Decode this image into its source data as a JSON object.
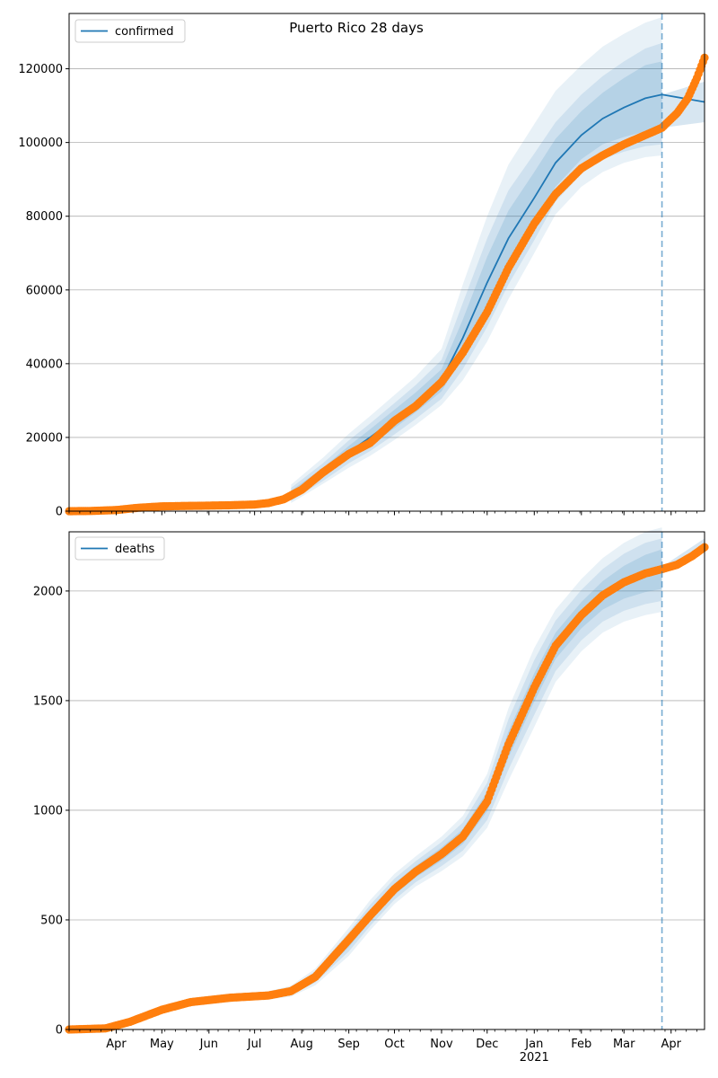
{
  "figure": {
    "title": "Puerto Rico 28 days"
  },
  "colors": {
    "model": "#1f77b4",
    "observed": "#ff7f0e",
    "band": "#1f77b4",
    "grid": "#b0b0b0",
    "vline": "#1f77b4"
  },
  "x_axis": {
    "start": "2020-03-01",
    "end": "2021-04-23",
    "month_labels": [
      "Apr",
      "May",
      "Jun",
      "Jul",
      "Aug",
      "Sep",
      "Oct",
      "Nov",
      "Dec",
      "Jan",
      "Feb",
      "Mar",
      "Apr"
    ],
    "month_dates": [
      "2020-04-01",
      "2020-05-01",
      "2020-06-01",
      "2020-07-01",
      "2020-08-01",
      "2020-09-01",
      "2020-10-01",
      "2020-11-01",
      "2020-12-01",
      "2021-01-01",
      "2021-02-01",
      "2021-03-01",
      "2021-04-01"
    ],
    "year_label": "2021",
    "forecast_start": "2021-03-26"
  },
  "chart_data": [
    {
      "type": "line",
      "legend": "confirmed",
      "legend_position": "top-left",
      "grid": "y",
      "ylim": [
        0,
        135000
      ],
      "yticks": [
        0,
        20000,
        40000,
        60000,
        80000,
        100000,
        120000
      ],
      "ytick_labels": [
        "0",
        "20000",
        "40000",
        "60000",
        "80000",
        "100000",
        "120000"
      ],
      "model": {
        "dates": [
          "2020-07-25",
          "2020-08-15",
          "2020-09-01",
          "2020-09-15",
          "2020-10-01",
          "2020-10-15",
          "2020-11-01",
          "2020-11-15",
          "2020-12-01",
          "2020-12-15",
          "2021-01-01",
          "2021-01-15",
          "2021-02-01",
          "2021-02-15",
          "2021-03-01",
          "2021-03-15",
          "2021-03-26",
          "2021-04-23"
        ],
        "values": [
          4500,
          10500,
          16000,
          20000,
          25000,
          29500,
          35500,
          47000,
          62000,
          74000,
          85000,
          94500,
          102000,
          106500,
          109500,
          112000,
          113000,
          111000
        ]
      },
      "band_inner": {
        "lower": [
          3500,
          9200,
          14300,
          17800,
          22500,
          26800,
          32500,
          42000,
          55000,
          66500,
          78000,
          88000,
          95500,
          99500,
          101500,
          103000,
          104000
        ],
        "upper": [
          5500,
          11800,
          17700,
          22200,
          27500,
          32200,
          38500,
          52000,
          69000,
          81500,
          92000,
          101000,
          108500,
          113500,
          117500,
          121000,
          122000
        ]
      },
      "band_middle": {
        "lower": [
          2800,
          8200,
          13000,
          16300,
          20800,
          25000,
          30500,
          38500,
          50000,
          61500,
          73500,
          84000,
          91500,
          95500,
          97500,
          99000,
          99500
        ],
        "upper": [
          6300,
          13000,
          19200,
          23800,
          29300,
          34200,
          41000,
          56500,
          74000,
          87000,
          97000,
          105500,
          113000,
          118000,
          122000,
          125500,
          127000
        ]
      },
      "band_outer": {
        "lower": [
          2200,
          7400,
          11800,
          15000,
          19300,
          23400,
          28800,
          35500,
          46000,
          57500,
          70000,
          80500,
          88000,
          92000,
          94500,
          96000,
          96500
        ],
        "upper": [
          7200,
          14500,
          21000,
          25800,
          31500,
          36500,
          44000,
          61500,
          80000,
          94000,
          105000,
          114000,
          121000,
          126000,
          129500,
          132500,
          134000
        ]
      },
      "forecast_band": {
        "lower": [
          104000,
          105500
        ],
        "upper": [
          113000,
          116500
        ]
      },
      "observed": {
        "dates": [
          "2020-03-01",
          "2020-03-15",
          "2020-04-01",
          "2020-04-15",
          "2020-05-01",
          "2020-05-15",
          "2020-06-01",
          "2020-06-15",
          "2020-07-01",
          "2020-07-10",
          "2020-07-20",
          "2020-08-01",
          "2020-08-15",
          "2020-09-01",
          "2020-09-15",
          "2020-10-01",
          "2020-10-15",
          "2020-11-01",
          "2020-11-15",
          "2020-12-01",
          "2020-12-15",
          "2021-01-01",
          "2021-01-15",
          "2021-02-01",
          "2021-02-15",
          "2021-03-01",
          "2021-03-15",
          "2021-03-26",
          "2021-04-05",
          "2021-04-12",
          "2021-04-18",
          "2021-04-23"
        ],
        "values": [
          0,
          50,
          300,
          900,
          1300,
          1400,
          1500,
          1600,
          1800,
          2200,
          3200,
          5800,
          10500,
          15500,
          18500,
          24500,
          28500,
          35000,
          43000,
          54000,
          66000,
          78000,
          86000,
          93000,
          96500,
          99500,
          102000,
          104000,
          108000,
          112000,
          117500,
          123000
        ]
      }
    },
    {
      "type": "line",
      "legend": "deaths",
      "legend_position": "top-left",
      "grid": "y",
      "ylim": [
        0,
        2270
      ],
      "yticks": [
        0,
        500,
        1000,
        1500,
        2000
      ],
      "ytick_labels": [
        "0",
        "500",
        "1000",
        "1500",
        "2000"
      ],
      "model": {
        "dates": [
          "2020-03-01",
          "2020-03-25",
          "2020-04-10",
          "2020-05-01",
          "2020-05-20",
          "2020-06-15",
          "2020-07-10",
          "2020-07-25",
          "2020-08-10",
          "2020-09-01",
          "2020-09-15",
          "2020-10-01",
          "2020-10-15",
          "2020-11-01",
          "2020-11-15",
          "2020-12-01",
          "2020-12-15",
          "2021-01-01",
          "2021-01-15",
          "2021-02-01",
          "2021-02-15",
          "2021-03-01",
          "2021-03-15",
          "2021-03-26",
          "2021-04-23"
        ],
        "values": [
          0,
          5,
          35,
          90,
          125,
          145,
          155,
          175,
          240,
          400,
          520,
          640,
          720,
          800,
          880,
          1040,
          1300,
          1560,
          1750,
          1890,
          1980,
          2040,
          2080,
          2100,
          2200
        ]
      },
      "band_inner": {
        "lower": [
          0,
          4,
          30,
          84,
          118,
          138,
          148,
          166,
          226,
          376,
          494,
          614,
          694,
          770,
          846,
          995,
          1240,
          1495,
          1690,
          1830,
          1915,
          1965,
          1995,
          2010
        ],
        "upper": [
          0,
          6,
          40,
          96,
          132,
          152,
          162,
          184,
          254,
          424,
          546,
          666,
          746,
          830,
          914,
          1085,
          1360,
          1625,
          1810,
          1950,
          2045,
          2115,
          2165,
          2190
        ]
      },
      "band_middle": {
        "lower": [
          0,
          3,
          26,
          79,
          112,
          132,
          142,
          158,
          214,
          356,
          472,
          592,
          672,
          745,
          816,
          955,
          1185,
          1435,
          1635,
          1775,
          1860,
          1910,
          1940,
          1955
        ],
        "upper": [
          0,
          7,
          44,
          101,
          138,
          158,
          168,
          192,
          266,
          444,
          568,
          688,
          768,
          855,
          944,
          1125,
          1415,
          1685,
          1865,
          2005,
          2100,
          2170,
          2220,
          2240
        ]
      },
      "band_outer": {
        "lower": [
          0,
          2,
          22,
          74,
          106,
          126,
          136,
          150,
          202,
          336,
          452,
          572,
          652,
          722,
          790,
          920,
          1135,
          1380,
          1585,
          1725,
          1810,
          1860,
          1890,
          1905
        ],
        "upper": [
          0,
          8,
          48,
          106,
          144,
          164,
          174,
          200,
          278,
          464,
          590,
          710,
          790,
          880,
          974,
          1165,
          1465,
          1740,
          1915,
          2055,
          2150,
          2220,
          2270,
          2290
        ]
      },
      "forecast_band": {
        "lower": [
          2095,
          2175
        ],
        "upper": [
          2110,
          2240
        ]
      },
      "observed": {
        "dates": [
          "2020-03-01",
          "2020-03-25",
          "2020-04-10",
          "2020-05-01",
          "2020-05-20",
          "2020-06-15",
          "2020-07-10",
          "2020-07-25",
          "2020-08-10",
          "2020-09-01",
          "2020-09-15",
          "2020-10-01",
          "2020-10-15",
          "2020-11-01",
          "2020-11-15",
          "2020-12-01",
          "2020-12-15",
          "2021-01-01",
          "2021-01-15",
          "2021-02-01",
          "2021-02-15",
          "2021-03-01",
          "2021-03-15",
          "2021-03-26",
          "2021-04-05",
          "2021-04-15",
          "2021-04-23"
        ],
        "values": [
          0,
          5,
          35,
          90,
          125,
          145,
          155,
          175,
          240,
          410,
          520,
          640,
          720,
          800,
          880,
          1040,
          1300,
          1560,
          1750,
          1890,
          1980,
          2040,
          2080,
          2100,
          2120,
          2160,
          2200
        ]
      }
    }
  ]
}
